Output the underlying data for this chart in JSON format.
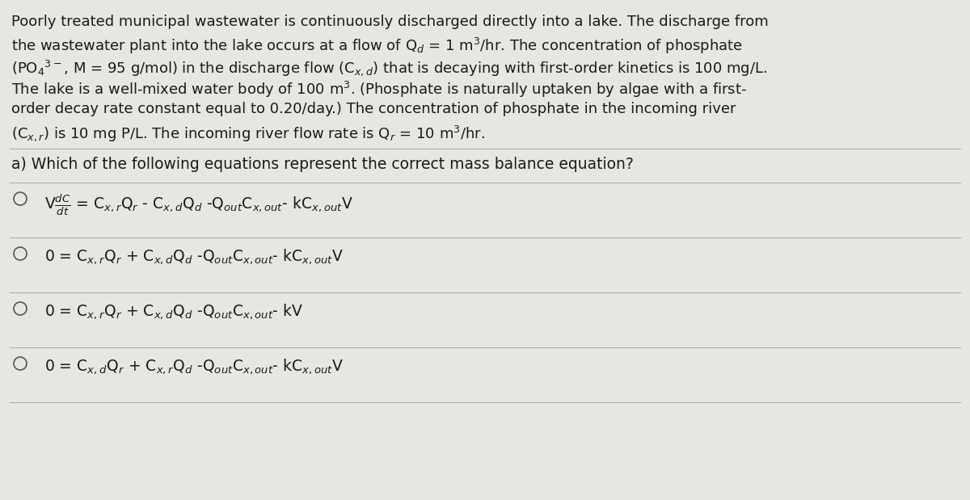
{
  "bg_color": "#e8e6e3",
  "text_color": "#1a1a1a",
  "font_size_para": 13.0,
  "font_size_question": 13.5,
  "font_size_options": 13.5,
  "para_lines": [
    "Poorly treated municipal wastewater is continuously discharged directly into a lake. The discharge from",
    "the wastewater plant into the lake occurs at a flow of Q$_d$ = 1 m$^3$/hr. The concentration of phosphate",
    "(PO$_4$$^{3-}$, M = 95 g/mol) in the discharge flow (C$_{x,d}$) that is decaying with first-order kinetics is 100 mg/L.",
    "The lake is a well-mixed water body of 100 m$^3$. (Phosphate is naturally uptaken by algae with a first-",
    "order decay rate constant equal to 0.20/day.) The concentration of phosphate in the incoming river",
    "(C$_{x,r}$) is 10 mg P/L. The incoming river flow rate is Q$_r$ = 10 m$^3$/hr."
  ],
  "question": "a) Which of the following equations represent the correct mass balance equation?",
  "option_texts": [
    "V$\\frac{dC}{dt}$ = C$_{x,r}$Q$_r$ - C$_{x,d}$Q$_d$ -Q$_{out}$C$_{x,out}$- kC$_{x,out}$V",
    "0 = C$_{x,r}$Q$_r$ + C$_{x,d}$Q$_d$ -Q$_{out}$C$_{x,out}$- kC$_{x,out}$V",
    "0 = C$_{x,r}$Q$_r$ + C$_{x,d}$Q$_d$ -Q$_{out}$C$_{x,out}$- kV",
    "0 = C$_{x,d}$Q$_r$ + C$_{x,r}$Q$_d$ -Q$_{out}$C$_{x,out}$- kC$_{x,out}$V"
  ],
  "sep_color": "#b0aea8",
  "circle_color": "#555555"
}
